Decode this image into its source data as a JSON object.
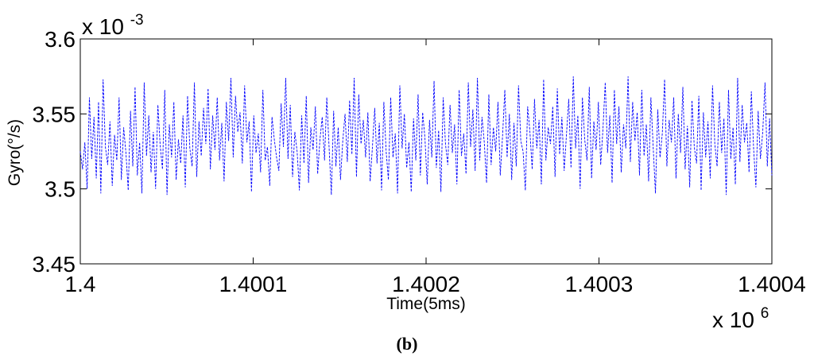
{
  "chart_data": {
    "type": "line",
    "xlabel": "Time(5ms)",
    "ylabel": "Gyro(°/s)",
    "y_multiplier_label": "x 10",
    "y_multiplier_exp": "-3",
    "x_multiplier_label": "x 10",
    "x_multiplier_exp": "6",
    "xlim": [
      1.4,
      1.4004
    ],
    "ylim": [
      3.45,
      3.6
    ],
    "x_ticks": [
      1.4,
      1.4001,
      1.4002,
      1.4003,
      1.4004
    ],
    "x_tick_labels": [
      "1.4",
      "1.4001",
      "1.4002",
      "1.4003",
      "1.4004"
    ],
    "y_ticks": [
      3.45,
      3.5,
      3.55,
      3.6
    ],
    "y_tick_labels": [
      "3.45",
      "3.5",
      "3.55",
      "3.6"
    ],
    "series": [
      {
        "color": "#0000ff",
        "line_style": "dashed",
        "x_start": 1.4,
        "x_end": 1.4004,
        "values": [
          3.525,
          3.513,
          3.531,
          3.5,
          3.561,
          3.52,
          3.548,
          3.507,
          3.558,
          3.497,
          3.573,
          3.528,
          3.516,
          3.545,
          3.502,
          3.536,
          3.519,
          3.561,
          3.506,
          3.541,
          3.524,
          3.499,
          3.552,
          3.515,
          3.568,
          3.509,
          3.531,
          3.497,
          3.571,
          3.522,
          3.549,
          3.511,
          3.538,
          3.5,
          3.556,
          3.529,
          3.513,
          3.566,
          3.496,
          3.543,
          3.521,
          3.558,
          3.506,
          3.533,
          3.517,
          3.549,
          3.501,
          3.562,
          3.527,
          3.515,
          3.571,
          3.508,
          3.545,
          3.522,
          3.554,
          3.53,
          3.567,
          3.513,
          3.549,
          3.526,
          3.561,
          3.519,
          3.544,
          3.505,
          3.558,
          3.532,
          3.574,
          3.521,
          3.562,
          3.538,
          3.551,
          3.517,
          3.569,
          3.531,
          3.545,
          3.498,
          3.549,
          3.524,
          3.537,
          3.511,
          3.566,
          3.519,
          3.528,
          3.502,
          3.548,
          3.533,
          3.521,
          3.512,
          3.557,
          3.528,
          3.574,
          3.52,
          3.556,
          3.508,
          3.538,
          3.525,
          3.499,
          3.549,
          3.517,
          3.562,
          3.504,
          3.541,
          3.526,
          3.555,
          3.51,
          3.533,
          3.548,
          3.519,
          3.561,
          3.528,
          3.496,
          3.552,
          3.515,
          3.541,
          3.506,
          3.532,
          3.55,
          3.518,
          3.559,
          3.523,
          3.574,
          3.508,
          3.563,
          3.53,
          3.546,
          3.521,
          3.551,
          3.505,
          3.528,
          3.554,
          3.517,
          3.544,
          3.499,
          3.558,
          3.525,
          3.506,
          3.561,
          3.521,
          3.537,
          3.497,
          3.569,
          3.527,
          3.55,
          3.514,
          3.531,
          3.498,
          3.547,
          3.519,
          3.563,
          3.509,
          3.551,
          3.534,
          3.503,
          3.546,
          3.521,
          3.572,
          3.514,
          3.539,
          3.498,
          3.561,
          3.53,
          3.516,
          3.556,
          3.524,
          3.543,
          3.503,
          3.566,
          3.522,
          3.537,
          3.51,
          3.571,
          3.528,
          3.553,
          3.512,
          3.574,
          3.519,
          3.548,
          3.531,
          3.504,
          3.563,
          3.516,
          3.541,
          3.525,
          3.558,
          3.509,
          3.535,
          3.566,
          3.521,
          3.55,
          3.506,
          3.544,
          3.515,
          3.569,
          3.532,
          3.525,
          3.499,
          3.555,
          3.538,
          3.513,
          3.56,
          3.527,
          3.546,
          3.503,
          3.573,
          3.519,
          3.541,
          3.53,
          3.555,
          3.508,
          3.567,
          3.523,
          3.548,
          3.512,
          3.536,
          3.56,
          3.514,
          3.575,
          3.527,
          3.549,
          3.5,
          3.561,
          3.533,
          3.519,
          3.568,
          3.507,
          3.545,
          3.526,
          3.558,
          3.516,
          3.54,
          3.571,
          3.524,
          3.549,
          3.504,
          3.566,
          3.53,
          3.555,
          3.511,
          3.543,
          3.527,
          3.575,
          3.518,
          3.558,
          3.532,
          3.551,
          3.509,
          3.566,
          3.522,
          3.543,
          3.505,
          3.561,
          3.528,
          3.497,
          3.553,
          3.521,
          3.537,
          3.573,
          3.515,
          3.546,
          3.531,
          3.561,
          3.507,
          3.55,
          3.524,
          3.568,
          3.513,
          3.542,
          3.501,
          3.559,
          3.528,
          3.517,
          3.562,
          3.499,
          3.551,
          3.521,
          3.545,
          3.507,
          3.569,
          3.53,
          3.515,
          3.558,
          3.524,
          3.547,
          3.496,
          3.566,
          3.52,
          3.541,
          3.503,
          3.574,
          3.518,
          3.556,
          3.531,
          3.544,
          3.511,
          3.565,
          3.527,
          3.501,
          3.552,
          3.52,
          3.538,
          3.571,
          3.515,
          3.547,
          3.509
        ]
      }
    ]
  },
  "caption": "(b)"
}
